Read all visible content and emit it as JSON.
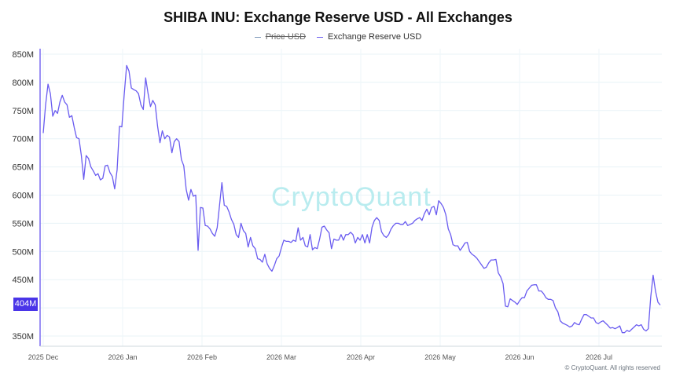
{
  "chart_data": {
    "type": "line",
    "title": "SHIBA INU: Exchange Reserve USD - All Exchanges",
    "legend": {
      "placement": "top-center"
    },
    "series": [
      {
        "name": "Price USD",
        "color": "#7b97b8",
        "hidden": true,
        "values": []
      },
      {
        "name": "Exchange Reserve USD",
        "color": "#6a5cf0",
        "unit": "M",
        "values": [
          710,
          760,
          797,
          780,
          740,
          750,
          745,
          765,
          777,
          765,
          760,
          738,
          741,
          720,
          702,
          700,
          670,
          628,
          670,
          665,
          650,
          643,
          635,
          638,
          627,
          630,
          652,
          653,
          640,
          633,
          611,
          645,
          722,
          721,
          780,
          830,
          820,
          790,
          787,
          785,
          780,
          760,
          752,
          808,
          780,
          757,
          768,
          760,
          722,
          693,
          714,
          700,
          706,
          703,
          675,
          695,
          700,
          695,
          663,
          652,
          610,
          591,
          610,
          598,
          600,
          502,
          578,
          577,
          546,
          545,
          540,
          532,
          527,
          542,
          582,
          622,
          582,
          580,
          570,
          557,
          548,
          530,
          525,
          550,
          537,
          532,
          508,
          525,
          510,
          505,
          487,
          486,
          481,
          495,
          478,
          470,
          465,
          475,
          487,
          492,
          507,
          520,
          518,
          518,
          516,
          520,
          518,
          542,
          520,
          525,
          510,
          508,
          530,
          503,
          507,
          505,
          522,
          543,
          545,
          538,
          533,
          505,
          522,
          520,
          520,
          530,
          520,
          530,
          530,
          534,
          530,
          515,
          525,
          520,
          530,
          515,
          530,
          515,
          543,
          555,
          560,
          555,
          535,
          528,
          525,
          530,
          540,
          546,
          550,
          550,
          548,
          548,
          553,
          546,
          548,
          550,
          555,
          558,
          560,
          555,
          567,
          575,
          565,
          578,
          580,
          565,
          590,
          585,
          578,
          565,
          540,
          530,
          512,
          510,
          510,
          502,
          508,
          515,
          516,
          500,
          495,
          492,
          488,
          482,
          476,
          470,
          472,
          480,
          485,
          485,
          486,
          462,
          455,
          443,
          403,
          402,
          416,
          413,
          410,
          406,
          413,
          418,
          418,
          430,
          435,
          440,
          441,
          441,
          430,
          430,
          425,
          418,
          415,
          415,
          413,
          400,
          393,
          377,
          373,
          371,
          369,
          366,
          368,
          374,
          371,
          370,
          380,
          388,
          388,
          385,
          382,
          382,
          374,
          372,
          375,
          377,
          373,
          369,
          364,
          365,
          363,
          365,
          368,
          356,
          356,
          360,
          358,
          362,
          366,
          370,
          368,
          370,
          362,
          359,
          363,
          420,
          458,
          430,
          410,
          405
        ]
      }
    ],
    "x_ticks": [
      "2025 Dec",
      "2026 Jan",
      "2026 Feb",
      "2026 Mar",
      "2026 Apr",
      "2026 May",
      "2026 Jun",
      "2026 Jul"
    ],
    "y_ticks": [
      "850M",
      "800M",
      "750M",
      "700M",
      "650M",
      "600M",
      "550M",
      "500M",
      "450M",
      "400M",
      "350M"
    ],
    "y_tick_values": [
      850,
      800,
      750,
      700,
      650,
      600,
      550,
      500,
      450,
      400,
      350
    ],
    "ylim": [
      335,
      855
    ],
    "grid": true,
    "current_value_label": "404M",
    "watermark": "CryptoQuant",
    "copyright": "© CryptoQuant. All rights reserved"
  }
}
